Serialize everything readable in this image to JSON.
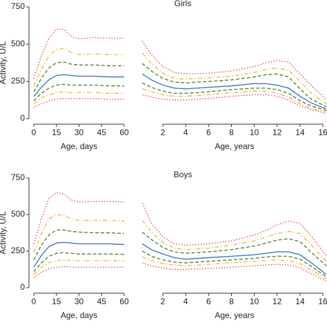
{
  "chart_data": [
    {
      "type": "line",
      "title": "Girls",
      "ylabel": "Activity, U/L",
      "xlabel": "Age, days",
      "x": [
        0,
        5,
        10,
        15,
        20,
        25,
        30,
        40,
        50,
        60
      ],
      "xlim": [
        0,
        60
      ],
      "xticks": [
        0,
        15,
        30,
        45,
        60
      ],
      "ylim": [
        0,
        750
      ],
      "yticks": [
        0,
        250,
        500,
        750
      ],
      "series": [
        {
          "color": "#e8445a",
          "dash": "dotted",
          "values": [
            270,
            420,
            540,
            600,
            600,
            550,
            535,
            545,
            540,
            540
          ]
        },
        {
          "color": "#f5b942",
          "dash": "dashdot",
          "values": [
            220,
            330,
            420,
            465,
            470,
            445,
            430,
            435,
            430,
            430
          ]
        },
        {
          "color": "#4a8a2a",
          "dash": "dashed",
          "values": [
            180,
            270,
            340,
            375,
            380,
            365,
            360,
            360,
            355,
            355
          ]
        },
        {
          "color": "#3a78c9",
          "dash": "solid",
          "values": [
            150,
            210,
            260,
            290,
            295,
            290,
            285,
            285,
            280,
            280
          ]
        },
        {
          "color": "#4a8a2a",
          "dash": "dashed",
          "values": [
            120,
            170,
            205,
            225,
            230,
            225,
            225,
            225,
            220,
            220
          ]
        },
        {
          "color": "#f5b942",
          "dash": "dashdot",
          "values": [
            100,
            140,
            160,
            175,
            180,
            175,
            175,
            175,
            170,
            170
          ]
        },
        {
          "color": "#e8445a",
          "dash": "dotted",
          "values": [
            75,
            100,
            120,
            130,
            135,
            135,
            135,
            135,
            130,
            130
          ]
        }
      ]
    },
    {
      "type": "line",
      "xlabel": "Age, years",
      "x": [
        0.2,
        1,
        2,
        3,
        4,
        6,
        8,
        10,
        11,
        12,
        13,
        14,
        15,
        16.3
      ],
      "xlim": [
        0.13,
        16.36
      ],
      "xticks": [
        2,
        4,
        6,
        8,
        10,
        12,
        14,
        16
      ],
      "ylim": [
        0,
        750
      ],
      "series": [
        {
          "color": "#e8445a",
          "dash": "dotted",
          "values": [
            520,
            430,
            350,
            310,
            300,
            305,
            320,
            350,
            375,
            390,
            380,
            300,
            220,
            130
          ]
        },
        {
          "color": "#f5b942",
          "dash": "dashdot",
          "values": [
            440,
            370,
            305,
            270,
            265,
            275,
            285,
            310,
            330,
            340,
            325,
            250,
            170,
            100
          ]
        },
        {
          "color": "#4a8a2a",
          "dash": "dashed",
          "values": [
            370,
            320,
            270,
            245,
            240,
            250,
            260,
            280,
            295,
            300,
            280,
            200,
            130,
            80
          ]
        },
        {
          "color": "#3a78c9",
          "dash": "solid",
          "values": [
            300,
            260,
            225,
            205,
            200,
            210,
            220,
            235,
            235,
            225,
            205,
            150,
            105,
            65
          ]
        },
        {
          "color": "#4a8a2a",
          "dash": "dashed",
          "values": [
            240,
            210,
            185,
            170,
            170,
            180,
            195,
            205,
            205,
            195,
            170,
            120,
            85,
            55
          ]
        },
        {
          "color": "#f5b942",
          "dash": "dashdot",
          "values": [
            200,
            180,
            160,
            150,
            150,
            160,
            175,
            185,
            185,
            170,
            145,
            100,
            70,
            45
          ]
        },
        {
          "color": "#e8445a",
          "dash": "dotted",
          "values": [
            160,
            145,
            130,
            125,
            125,
            135,
            150,
            160,
            160,
            150,
            125,
            85,
            60,
            35
          ]
        }
      ]
    },
    {
      "type": "line",
      "title": "Boys",
      "ylabel": "Activity, U/L",
      "xlabel": "Age, days",
      "x": [
        0,
        5,
        10,
        15,
        20,
        25,
        30,
        40,
        50,
        60
      ],
      "xlim": [
        0,
        60
      ],
      "xticks": [
        0,
        15,
        30,
        45,
        60
      ],
      "ylim": [
        0,
        750
      ],
      "yticks": [
        0,
        250,
        500,
        750
      ],
      "series": [
        {
          "color": "#e8445a",
          "dash": "dotted",
          "values": [
            300,
            470,
            610,
            650,
            640,
            600,
            585,
            590,
            590,
            585
          ]
        },
        {
          "color": "#f5b942",
          "dash": "dashdot",
          "values": [
            240,
            370,
            470,
            500,
            495,
            470,
            460,
            460,
            460,
            455
          ]
        },
        {
          "color": "#4a8a2a",
          "dash": "dashed",
          "values": [
            190,
            290,
            360,
            395,
            395,
            385,
            380,
            375,
            375,
            370
          ]
        },
        {
          "color": "#3a78c9",
          "dash": "solid",
          "values": [
            140,
            220,
            280,
            305,
            310,
            305,
            300,
            300,
            300,
            295
          ]
        },
        {
          "color": "#4a8a2a",
          "dash": "dashed",
          "values": [
            110,
            170,
            215,
            235,
            240,
            235,
            230,
            230,
            230,
            228
          ]
        },
        {
          "color": "#f5b942",
          "dash": "dashdot",
          "values": [
            90,
            140,
            170,
            185,
            190,
            185,
            185,
            185,
            185,
            182
          ]
        },
        {
          "color": "#e8445a",
          "dash": "dotted",
          "values": [
            70,
            105,
            130,
            140,
            145,
            140,
            140,
            140,
            140,
            140
          ]
        }
      ]
    },
    {
      "type": "line",
      "xlabel": "Age, years",
      "x": [
        0.2,
        1,
        2,
        3,
        4,
        6,
        8,
        10,
        11,
        12,
        13,
        14,
        15,
        16.3
      ],
      "xlim": [
        0.13,
        16.36
      ],
      "xticks": [
        2,
        4,
        6,
        8,
        10,
        12,
        14,
        16
      ],
      "ylim": [
        0,
        750
      ],
      "series": [
        {
          "color": "#e8445a",
          "dash": "dotted",
          "values": [
            580,
            440,
            350,
            300,
            290,
            300,
            320,
            360,
            390,
            430,
            455,
            440,
            350,
            220
          ]
        },
        {
          "color": "#f5b942",
          "dash": "dashdot",
          "values": [
            460,
            380,
            310,
            270,
            260,
            270,
            290,
            320,
            345,
            370,
            385,
            370,
            290,
            180
          ]
        },
        {
          "color": "#4a8a2a",
          "dash": "dashed",
          "values": [
            380,
            330,
            275,
            245,
            235,
            245,
            260,
            285,
            305,
            325,
            335,
            315,
            240,
            150
          ]
        },
        {
          "color": "#3a78c9",
          "dash": "solid",
          "values": [
            300,
            260,
            230,
            205,
            195,
            205,
            215,
            225,
            235,
            245,
            245,
            225,
            170,
            90
          ]
        },
        {
          "color": "#4a8a2a",
          "dash": "dashed",
          "values": [
            250,
            215,
            190,
            175,
            170,
            180,
            190,
            200,
            210,
            215,
            215,
            195,
            145,
            75
          ]
        },
        {
          "color": "#f5b942",
          "dash": "dashdot",
          "values": [
            210,
            185,
            165,
            155,
            150,
            160,
            170,
            180,
            185,
            190,
            185,
            165,
            120,
            60
          ]
        },
        {
          "color": "#e8445a",
          "dash": "dotted",
          "values": [
            170,
            150,
            135,
            125,
            125,
            130,
            140,
            150,
            155,
            160,
            155,
            135,
            95,
            45
          ]
        }
      ]
    }
  ]
}
